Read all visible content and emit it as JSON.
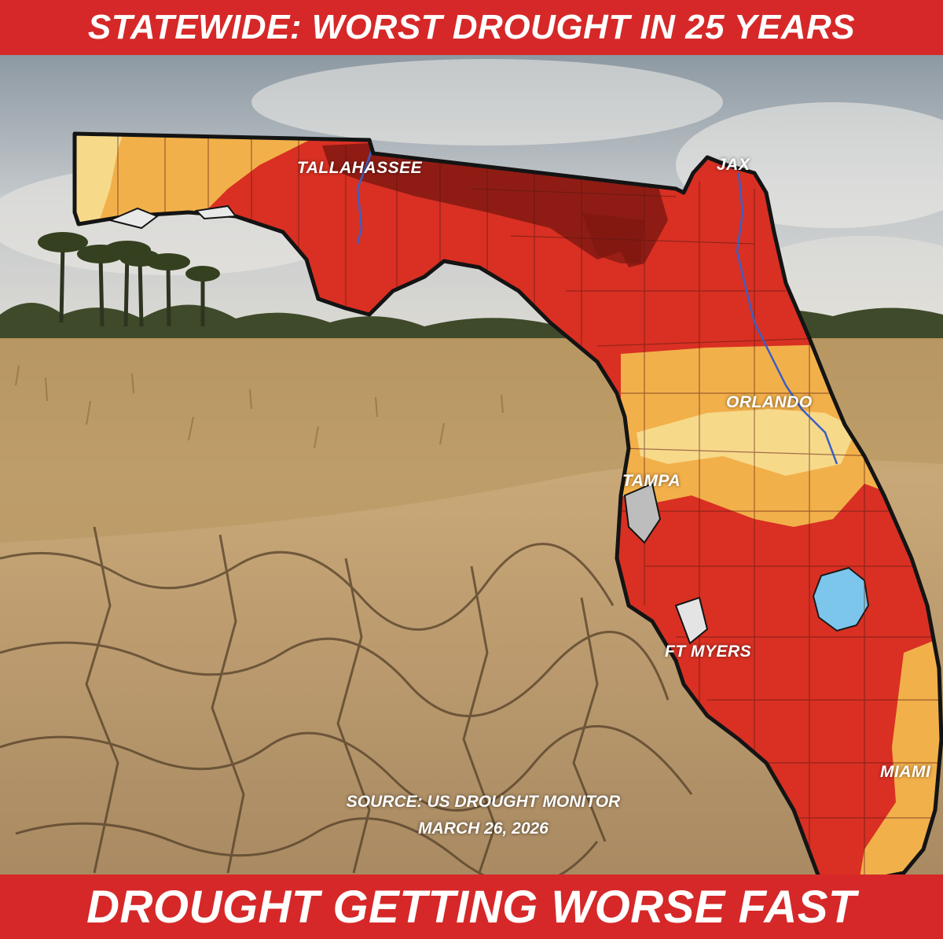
{
  "headline_top": "STATEWIDE: WORST DROUGHT IN 25 YEARS",
  "headline_bottom": "DROUGHT GETTING WORSE FAST",
  "cities": {
    "tallahassee": "TALLAHASSEE",
    "jax": "JAX",
    "orlando": "ORLANDO",
    "tampa": "TAMPA",
    "ft_myers": "FT MYERS",
    "miami": "MIAMI"
  },
  "source_line": "SOURCE: US DROUGHT MONITOR",
  "source_date": "MARCH 26, 2026",
  "colors": {
    "banner": "#d62828",
    "severe_drought": "#d93023",
    "extreme_drought": "#8f1c14",
    "moderate_drought": "#f2b04a",
    "abnormally_dry": "#f7d98a",
    "water": "#7cc6ec"
  }
}
